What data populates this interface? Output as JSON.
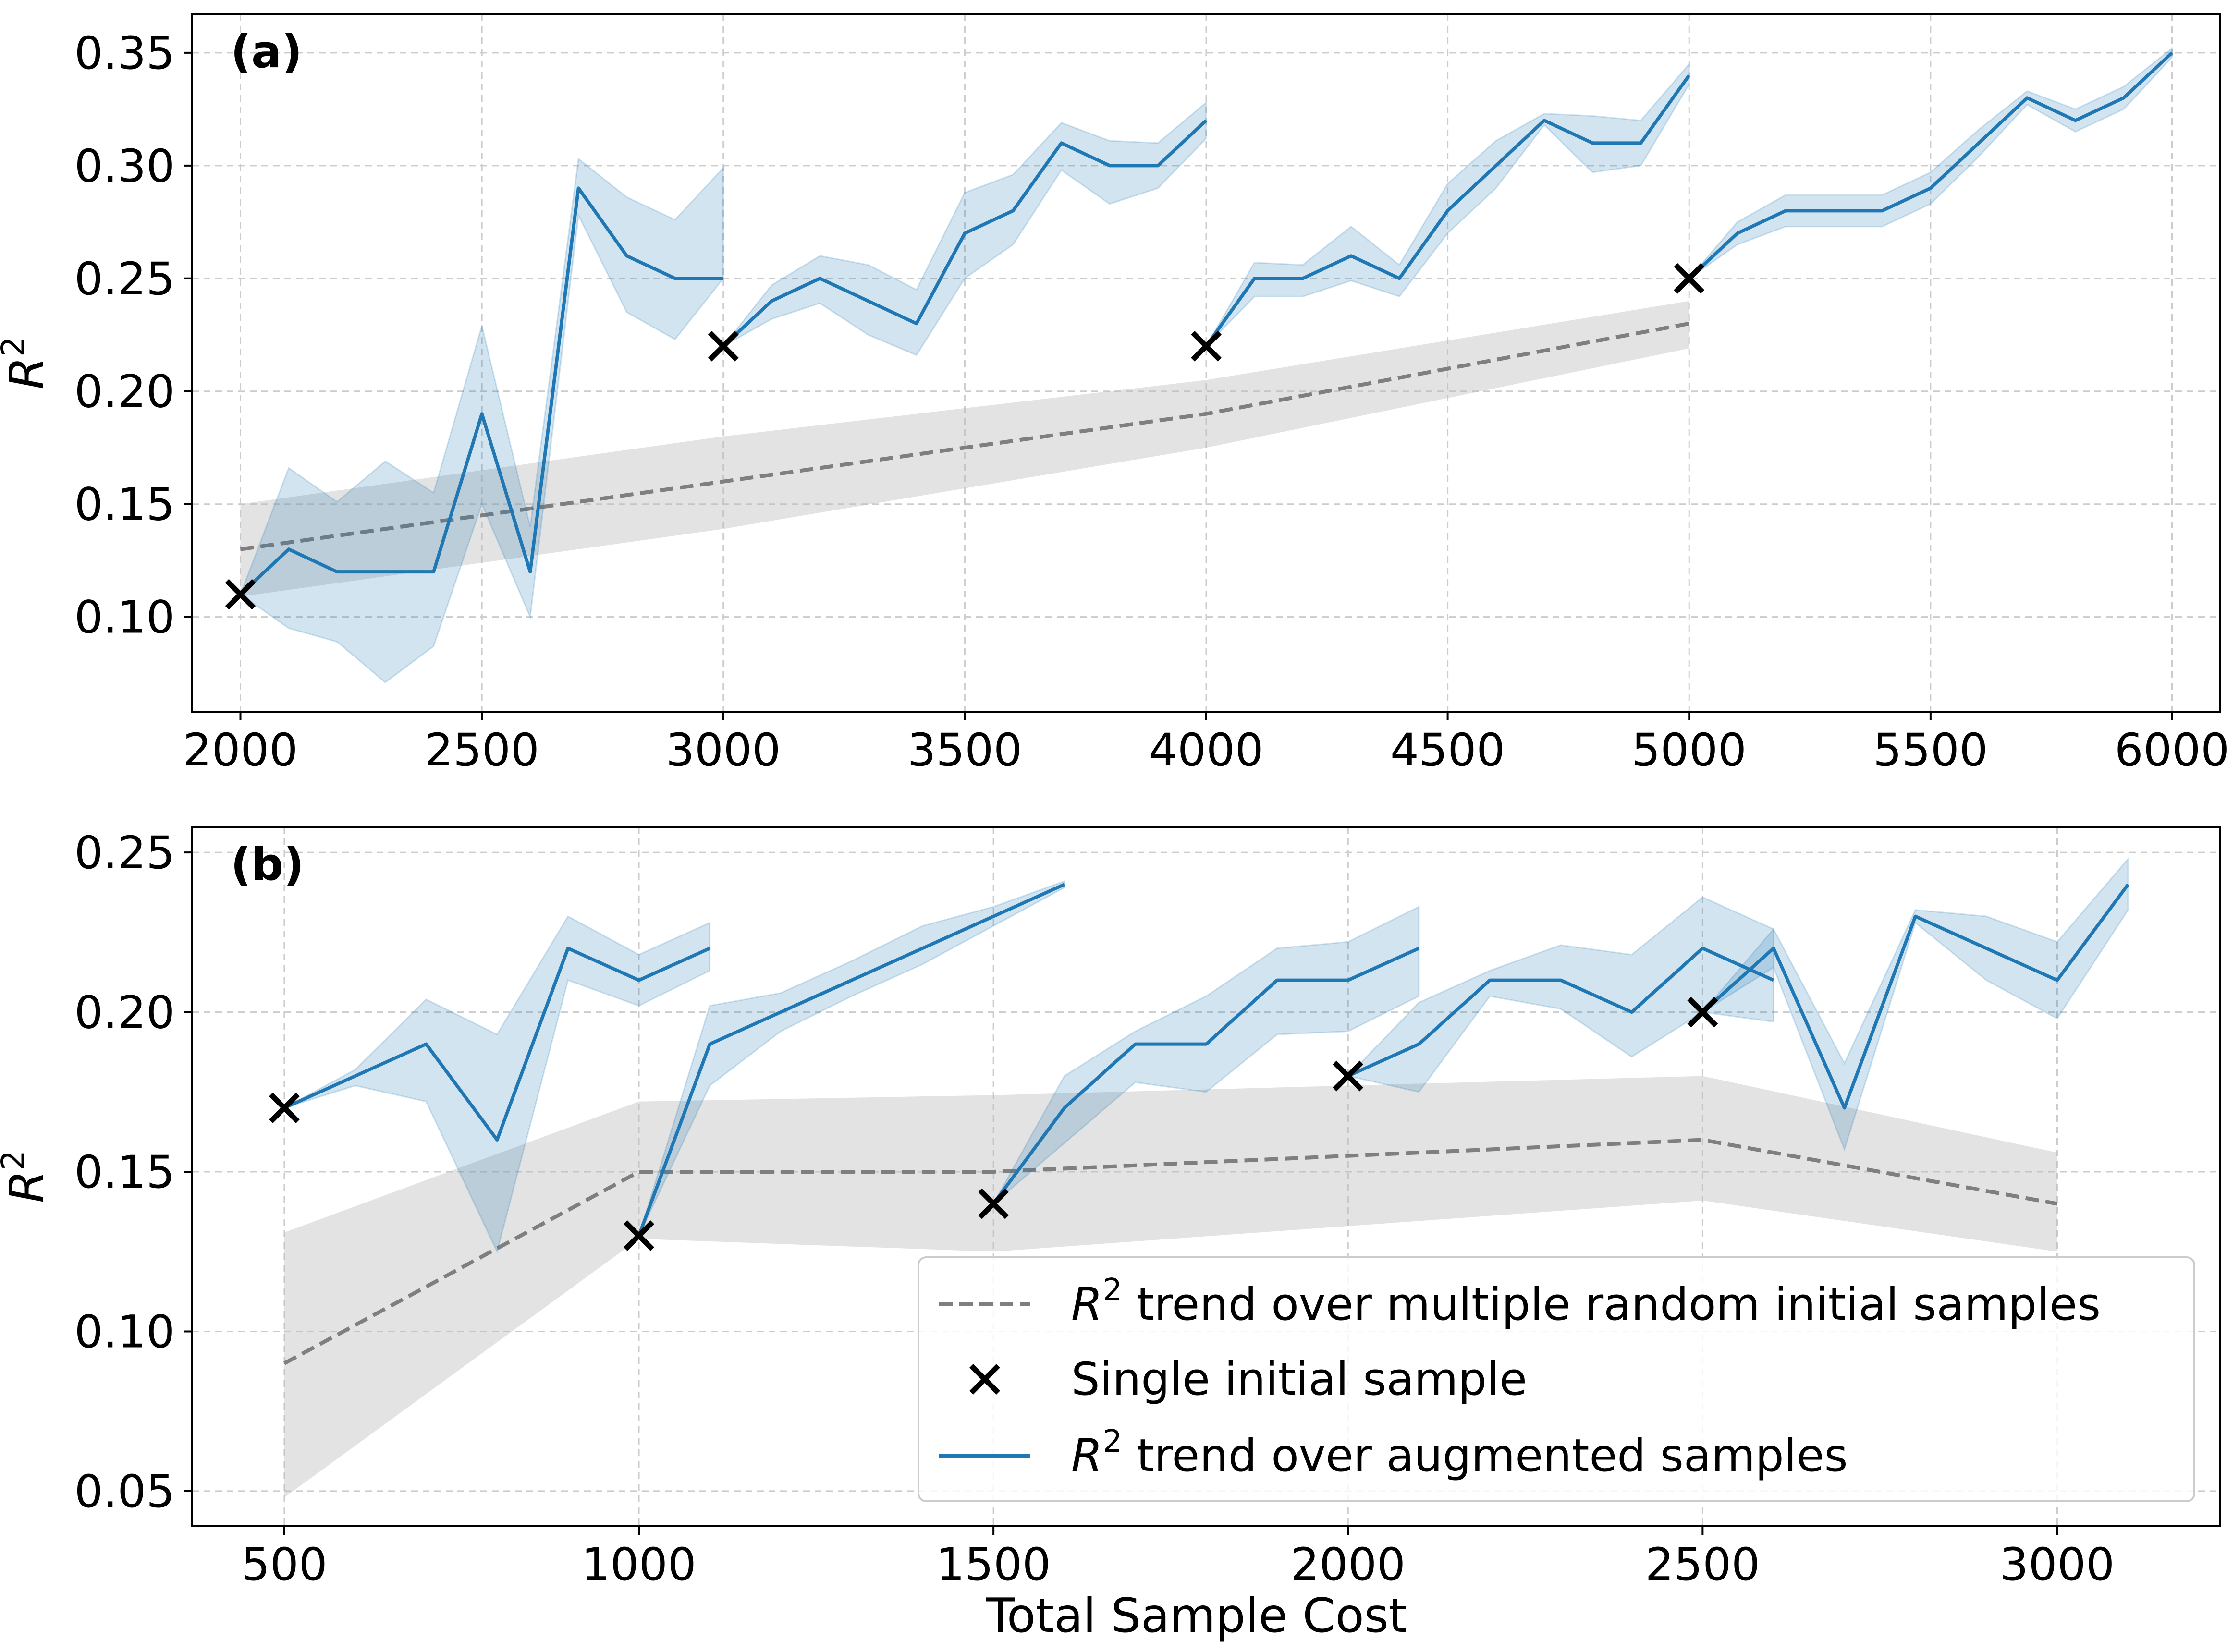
{
  "colors": {
    "augmented": "#1f77b4",
    "augmented_band": "#1f77b4",
    "baseline": "#7f7f7f",
    "baseline_band": "#bdbdbd",
    "marker": "#000000",
    "grid": "#cccccc"
  },
  "labels": {
    "x_title": "Total Sample Cost",
    "y_title_base": "R",
    "y_title_sup": "2"
  },
  "legend": {
    "baseline": {
      "pre": "R",
      "sup": "2",
      "post": " trend over multiple random initial samples"
    },
    "marker": {
      "text": "Single initial sample"
    },
    "augmented": {
      "pre": "R",
      "sup": "2",
      "post": " trend over augmented samples"
    }
  },
  "chart_data": [
    {
      "type": "line",
      "panel_label": "(a)",
      "xlabel": "",
      "ylabel": "R^2",
      "xlim": [
        1900,
        6100
      ],
      "ylim": [
        0.058,
        0.367
      ],
      "xticks": [
        2000,
        2500,
        3000,
        3500,
        4000,
        4500,
        5000,
        5500,
        6000
      ],
      "xtick_labels": [
        "2000",
        "2500",
        "3000",
        "3500",
        "4000",
        "4500",
        "5000",
        "5500",
        "6000"
      ],
      "yticks": [
        0.1,
        0.15,
        0.2,
        0.25,
        0.3,
        0.35
      ],
      "ytick_labels": [
        "0.10",
        "0.15",
        "0.20",
        "0.25",
        "0.30",
        "0.35"
      ],
      "grid": true,
      "baseline": {
        "name": "R^2 trend over multiple random initial samples",
        "x": [
          2000,
          3000,
          4000,
          5000
        ],
        "mean": [
          0.13,
          0.16,
          0.19,
          0.23
        ],
        "lower": [
          0.109,
          0.139,
          0.175,
          0.219
        ],
        "upper": [
          0.15,
          0.18,
          0.205,
          0.24
        ]
      },
      "initial_samples": {
        "name": "Single initial sample",
        "x": [
          2000,
          3000,
          4000,
          5000
        ],
        "y": [
          0.11,
          0.22,
          0.22,
          0.25
        ]
      },
      "augmented": [
        {
          "x": [
            2000,
            2100,
            2200,
            2300,
            2400,
            2500,
            2600,
            2700,
            2800,
            2900,
            3000
          ],
          "mean": [
            0.11,
            0.13,
            0.12,
            0.12,
            0.12,
            0.19,
            0.12,
            0.29,
            0.26,
            0.25,
            0.25
          ],
          "lower": [
            0.11,
            0.095,
            0.089,
            0.071,
            0.087,
            0.15,
            0.1,
            0.278,
            0.235,
            0.223,
            0.25
          ],
          "upper": [
            0.11,
            0.166,
            0.151,
            0.169,
            0.155,
            0.229,
            0.14,
            0.303,
            0.286,
            0.276,
            0.299
          ]
        },
        {
          "x": [
            3000,
            3100,
            3200,
            3300,
            3400,
            3500,
            3600,
            3700,
            3800,
            3900,
            4000
          ],
          "mean": [
            0.22,
            0.24,
            0.25,
            0.24,
            0.23,
            0.27,
            0.28,
            0.31,
            0.3,
            0.3,
            0.32
          ],
          "lower": [
            0.22,
            0.232,
            0.239,
            0.225,
            0.216,
            0.25,
            0.265,
            0.298,
            0.283,
            0.29,
            0.312
          ],
          "upper": [
            0.22,
            0.247,
            0.26,
            0.256,
            0.245,
            0.288,
            0.296,
            0.319,
            0.311,
            0.31,
            0.328
          ]
        },
        {
          "x": [
            4000,
            4100,
            4200,
            4300,
            4400,
            4500,
            4600,
            4700,
            4800,
            4900,
            5000
          ],
          "mean": [
            0.22,
            0.25,
            0.25,
            0.26,
            0.25,
            0.28,
            0.3,
            0.32,
            0.31,
            0.31,
            0.34
          ],
          "lower": [
            0.22,
            0.242,
            0.242,
            0.249,
            0.242,
            0.27,
            0.29,
            0.318,
            0.297,
            0.3,
            0.336
          ],
          "upper": [
            0.22,
            0.257,
            0.256,
            0.273,
            0.256,
            0.292,
            0.311,
            0.323,
            0.322,
            0.32,
            0.345
          ]
        },
        {
          "x": [
            5000,
            5100,
            5200,
            5300,
            5400,
            5500,
            5600,
            5700,
            5800,
            5900,
            6000
          ],
          "mean": [
            0.25,
            0.27,
            0.28,
            0.28,
            0.28,
            0.29,
            0.31,
            0.33,
            0.32,
            0.33,
            0.35
          ],
          "lower": [
            0.25,
            0.265,
            0.273,
            0.273,
            0.273,
            0.283,
            0.304,
            0.327,
            0.315,
            0.325,
            0.348
          ],
          "upper": [
            0.25,
            0.275,
            0.287,
            0.287,
            0.287,
            0.297,
            0.316,
            0.333,
            0.325,
            0.335,
            0.352
          ]
        }
      ]
    },
    {
      "type": "line",
      "panel_label": "(b)",
      "xlabel": "Total Sample Cost",
      "ylabel": "R^2",
      "xlim": [
        370,
        3230
      ],
      "ylim": [
        0.039,
        0.258
      ],
      "xticks": [
        500,
        1000,
        1500,
        2000,
        2500,
        3000
      ],
      "xtick_labels": [
        "500",
        "1000",
        "1500",
        "2000",
        "2500",
        "3000"
      ],
      "yticks": [
        0.05,
        0.1,
        0.15,
        0.2,
        0.25
      ],
      "ytick_labels": [
        "0.05",
        "0.10",
        "0.15",
        "0.20",
        "0.25"
      ],
      "grid": true,
      "baseline": {
        "name": "R^2 trend over multiple random initial samples",
        "x": [
          500,
          1000,
          1500,
          2000,
          2500,
          3000
        ],
        "mean": [
          0.09,
          0.15,
          0.15,
          0.155,
          0.16,
          0.14
        ],
        "lower": [
          0.048,
          0.129,
          0.125,
          0.133,
          0.141,
          0.125
        ],
        "upper": [
          0.131,
          0.172,
          0.174,
          0.177,
          0.18,
          0.156
        ]
      },
      "initial_samples": {
        "name": "Single initial sample",
        "x": [
          500,
          1000,
          1500,
          2000,
          2500
        ],
        "y": [
          0.17,
          0.13,
          0.14,
          0.18,
          0.2
        ]
      },
      "augmented": [
        {
          "x": [
            500,
            600,
            700,
            800,
            900,
            1000,
            1100
          ],
          "mean": [
            0.17,
            0.18,
            0.19,
            0.16,
            0.22,
            0.21,
            0.22
          ],
          "lower": [
            0.17,
            0.177,
            0.172,
            0.125,
            0.21,
            0.202,
            0.213
          ],
          "upper": [
            0.17,
            0.182,
            0.204,
            0.193,
            0.23,
            0.218,
            0.228
          ]
        },
        {
          "x": [
            1000,
            1100,
            1200,
            1300,
            1400,
            1500,
            1600
          ],
          "mean": [
            0.13,
            0.19,
            0.2,
            0.21,
            0.22,
            0.23,
            0.24
          ],
          "lower": [
            0.13,
            0.177,
            0.194,
            0.205,
            0.215,
            0.227,
            0.239
          ],
          "upper": [
            0.13,
            0.202,
            0.206,
            0.216,
            0.227,
            0.233,
            0.241
          ]
        },
        {
          "x": [
            1500,
            1600,
            1700,
            1800,
            1900,
            2000,
            2100
          ],
          "mean": [
            0.14,
            0.17,
            0.19,
            0.19,
            0.21,
            0.21,
            0.22
          ],
          "lower": [
            0.14,
            0.159,
            0.178,
            0.175,
            0.193,
            0.194,
            0.205
          ],
          "upper": [
            0.14,
            0.18,
            0.194,
            0.205,
            0.22,
            0.222,
            0.233
          ]
        },
        {
          "x": [
            2000,
            2100,
            2200,
            2300,
            2400,
            2500,
            2600
          ],
          "mean": [
            0.18,
            0.19,
            0.21,
            0.21,
            0.2,
            0.22,
            0.21
          ],
          "lower": [
            0.18,
            0.175,
            0.205,
            0.201,
            0.186,
            0.2,
            0.197
          ],
          "upper": [
            0.18,
            0.203,
            0.213,
            0.221,
            0.218,
            0.236,
            0.226
          ]
        },
        {
          "x": [
            2500,
            2600,
            2700,
            2800,
            2900,
            3000,
            3100
          ],
          "mean": [
            0.2,
            0.22,
            0.17,
            0.23,
            0.22,
            0.21,
            0.24
          ],
          "lower": [
            0.2,
            0.214,
            0.157,
            0.228,
            0.21,
            0.198,
            0.232
          ],
          "upper": [
            0.2,
            0.226,
            0.184,
            0.232,
            0.23,
            0.222,
            0.248
          ]
        }
      ]
    }
  ]
}
